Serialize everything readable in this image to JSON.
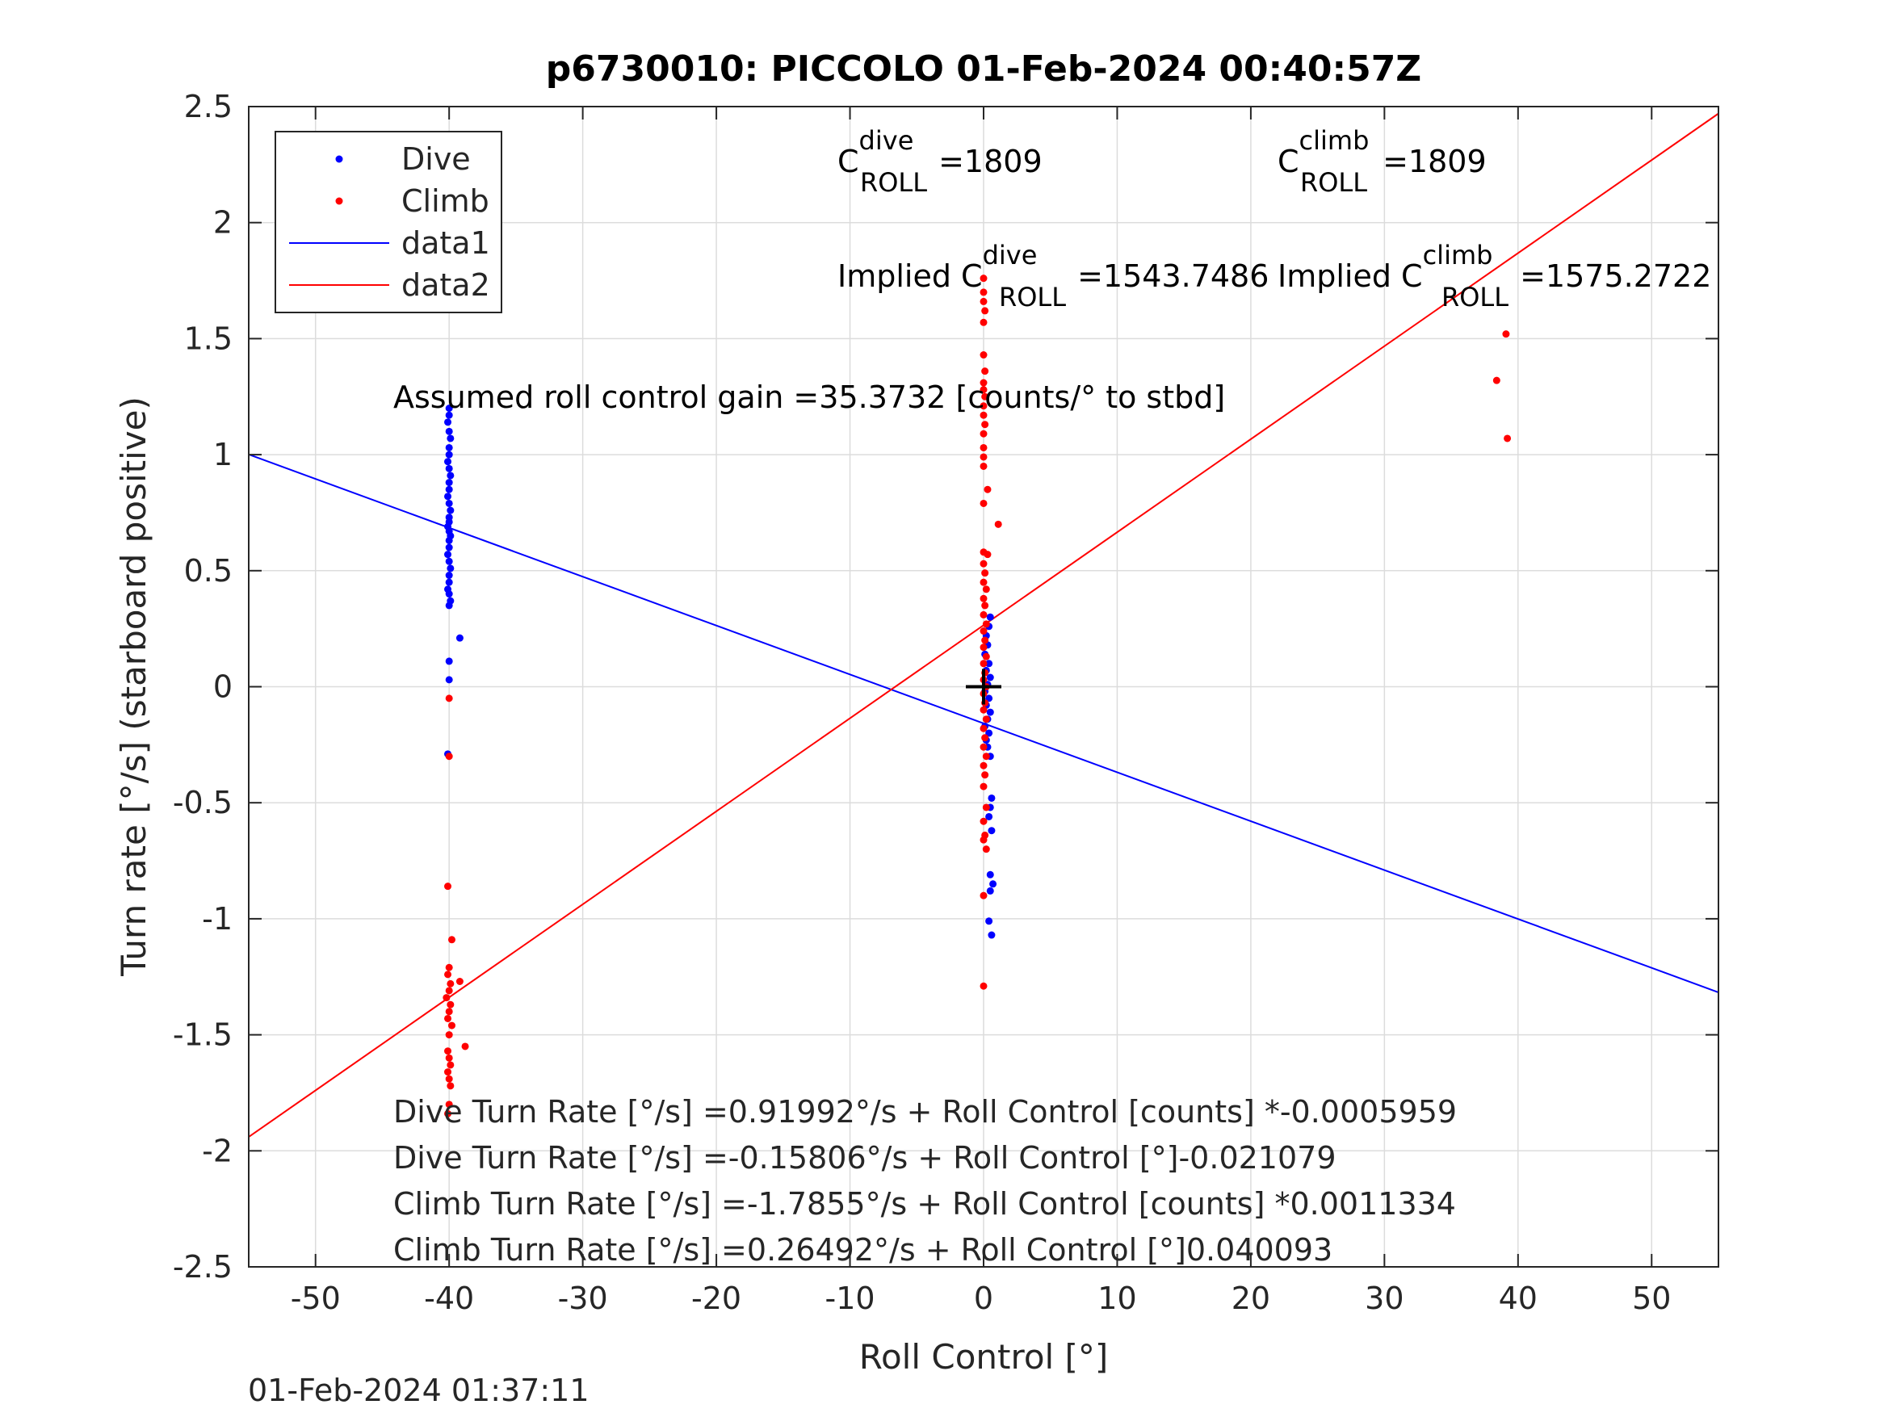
{
  "timestamp": "01-Feb-2024 01:37:11",
  "chart_data": {
    "type": "scatter",
    "title": "p6730010: PICCOLO 01-Feb-2024 00:40:57Z",
    "xlabel": "Roll Control [°]",
    "ylabel": "Turn rate [°/s] (starboard positive)",
    "xlim": [
      -55,
      55
    ],
    "ylim": [
      -2.5,
      2.5
    ],
    "xticks": [
      -50,
      -40,
      -30,
      -20,
      -10,
      0,
      10,
      20,
      30,
      40,
      50
    ],
    "yticks": [
      -2.5,
      -2,
      -1.5,
      -1,
      -0.5,
      0,
      0.5,
      1,
      1.5,
      2,
      2.5
    ],
    "xtick_labels": [
      "-50",
      "-40",
      "-30",
      "-20",
      "-10",
      "0",
      "10",
      "20",
      "30",
      "40",
      "50"
    ],
    "ytick_labels": [
      "-2.5",
      "-2",
      "-1.5",
      "-1",
      "-0.5",
      "0",
      "0.5",
      "1",
      "1.5",
      "2",
      "2.5"
    ],
    "grid": true,
    "legend": {
      "placement": "top-left",
      "entries": [
        {
          "label": "Dive",
          "color": "#0000ff",
          "kind": "marker"
        },
        {
          "label": "Climb",
          "color": "#ff0000",
          "kind": "marker"
        },
        {
          "label": "data1",
          "color": "#0000ff",
          "kind": "line"
        },
        {
          "label": "data2",
          "color": "#ff0000",
          "kind": "line"
        }
      ]
    },
    "series": [
      {
        "name": "Dive",
        "kind": "scatter",
        "color": "#0000ff",
        "points": [
          [
            -40.0,
            1.2
          ],
          [
            -40.0,
            1.17
          ],
          [
            -40.1,
            1.14
          ],
          [
            -40.0,
            1.1
          ],
          [
            -39.9,
            1.07
          ],
          [
            -40.0,
            1.03
          ],
          [
            -40.0,
            1.0
          ],
          [
            -40.1,
            0.97
          ],
          [
            -40.0,
            0.94
          ],
          [
            -39.9,
            0.91
          ],
          [
            -40.0,
            0.88
          ],
          [
            -40.0,
            0.85
          ],
          [
            -40.1,
            0.82
          ],
          [
            -40.0,
            0.79
          ],
          [
            -39.9,
            0.76
          ],
          [
            -40.0,
            0.73
          ],
          [
            -40.0,
            0.71
          ],
          [
            -40.1,
            0.69
          ],
          [
            -40.0,
            0.67
          ],
          [
            -39.9,
            0.65
          ],
          [
            -40.0,
            0.63
          ],
          [
            -40.0,
            0.6
          ],
          [
            -40.1,
            0.57
          ],
          [
            -40.0,
            0.54
          ],
          [
            -39.9,
            0.51
          ],
          [
            -40.0,
            0.48
          ],
          [
            -40.0,
            0.45
          ],
          [
            -40.1,
            0.42
          ],
          [
            -40.0,
            0.4
          ],
          [
            -39.9,
            0.37
          ],
          [
            -40.0,
            0.35
          ],
          [
            -39.2,
            0.21
          ],
          [
            -40.0,
            0.11
          ],
          [
            -40.0,
            0.03
          ],
          [
            -40.1,
            -0.29
          ],
          [
            0.5,
            0.3
          ],
          [
            0.4,
            0.26
          ],
          [
            0.2,
            0.22
          ],
          [
            0.3,
            0.18
          ],
          [
            0.1,
            0.14
          ],
          [
            0.4,
            0.1
          ],
          [
            0.2,
            0.07
          ],
          [
            0.5,
            0.04
          ],
          [
            0.3,
            0.01
          ],
          [
            0.1,
            -0.02
          ],
          [
            0.4,
            -0.05
          ],
          [
            0.2,
            -0.08
          ],
          [
            0.5,
            -0.11
          ],
          [
            0.3,
            -0.14
          ],
          [
            0.1,
            -0.17
          ],
          [
            0.4,
            -0.2
          ],
          [
            0.2,
            -0.23
          ],
          [
            0.3,
            -0.26
          ],
          [
            0.5,
            -0.3
          ],
          [
            0.6,
            -0.48
          ],
          [
            0.5,
            -0.52
          ],
          [
            0.4,
            -0.56
          ],
          [
            0.6,
            -0.62
          ],
          [
            0.5,
            -0.81
          ],
          [
            0.7,
            -0.85
          ],
          [
            0.5,
            -0.88
          ],
          [
            0.4,
            -1.01
          ],
          [
            0.6,
            -1.07
          ]
        ]
      },
      {
        "name": "Climb",
        "kind": "scatter",
        "color": "#ff0000",
        "points": [
          [
            -40.0,
            -0.05
          ],
          [
            -40.0,
            -0.3
          ],
          [
            -40.1,
            -0.86
          ],
          [
            -39.8,
            -1.09
          ],
          [
            -39.2,
            -1.27
          ],
          [
            -40.0,
            -1.21
          ],
          [
            -40.1,
            -1.24
          ],
          [
            -39.9,
            -1.28
          ],
          [
            -40.0,
            -1.31
          ],
          [
            -40.2,
            -1.34
          ],
          [
            -39.9,
            -1.37
          ],
          [
            -40.0,
            -1.4
          ],
          [
            -40.1,
            -1.43
          ],
          [
            -39.8,
            -1.46
          ],
          [
            -40.0,
            -1.5
          ],
          [
            -38.8,
            -1.55
          ],
          [
            -40.1,
            -1.57
          ],
          [
            -40.0,
            -1.6
          ],
          [
            -39.9,
            -1.63
          ],
          [
            -40.1,
            -1.66
          ],
          [
            -40.0,
            -1.69
          ],
          [
            -39.9,
            -1.72
          ],
          [
            -40.0,
            -1.8
          ],
          [
            -40.1,
            -1.84
          ],
          [
            0.0,
            1.76
          ],
          [
            0.0,
            1.7
          ],
          [
            0.0,
            1.66
          ],
          [
            0.1,
            1.62
          ],
          [
            0.0,
            1.57
          ],
          [
            0.0,
            1.43
          ],
          [
            0.1,
            1.36
          ],
          [
            0.0,
            1.31
          ],
          [
            0.0,
            1.28
          ],
          [
            0.1,
            1.25
          ],
          [
            0.0,
            1.21
          ],
          [
            0.0,
            1.17
          ],
          [
            0.1,
            1.13
          ],
          [
            0.0,
            1.09
          ],
          [
            0.0,
            1.03
          ],
          [
            0.0,
            0.99
          ],
          [
            0.0,
            0.95
          ],
          [
            0.3,
            0.85
          ],
          [
            0.0,
            0.79
          ],
          [
            1.1,
            0.7
          ],
          [
            0.0,
            0.58
          ],
          [
            0.3,
            0.57
          ],
          [
            0.0,
            0.53
          ],
          [
            0.1,
            0.49
          ],
          [
            0.0,
            0.45
          ],
          [
            0.2,
            0.42
          ],
          [
            0.0,
            0.38
          ],
          [
            0.1,
            0.35
          ],
          [
            0.0,
            0.31
          ],
          [
            0.2,
            0.27
          ],
          [
            0.0,
            0.24
          ],
          [
            0.1,
            0.2
          ],
          [
            0.0,
            0.17
          ],
          [
            0.2,
            0.13
          ],
          [
            0.0,
            0.1
          ],
          [
            0.1,
            0.06
          ],
          [
            0.0,
            0.03
          ],
          [
            0.2,
            0.0
          ],
          [
            0.0,
            -0.03
          ],
          [
            0.1,
            -0.07
          ],
          [
            0.0,
            -0.1
          ],
          [
            0.2,
            -0.14
          ],
          [
            0.0,
            -0.18
          ],
          [
            0.1,
            -0.22
          ],
          [
            0.0,
            -0.26
          ],
          [
            0.2,
            -0.3
          ],
          [
            0.0,
            -0.34
          ],
          [
            0.1,
            -0.38
          ],
          [
            0.0,
            -0.43
          ],
          [
            0.2,
            -0.52
          ],
          [
            0.0,
            -0.58
          ],
          [
            0.1,
            -0.64
          ],
          [
            0.0,
            -0.66
          ],
          [
            0.2,
            -0.7
          ],
          [
            0.0,
            -0.9
          ],
          [
            0.0,
            -1.29
          ],
          [
            38.4,
            1.32
          ],
          [
            39.1,
            1.52
          ],
          [
            39.2,
            1.07
          ]
        ]
      },
      {
        "name": "data1",
        "kind": "line",
        "color": "#0000ff",
        "x": [
          -55,
          55
        ],
        "y": [
          1.001,
          -1.317
        ]
      },
      {
        "name": "data2",
        "kind": "line",
        "color": "#ff0000",
        "x": [
          -55,
          55
        ],
        "y": [
          -1.94,
          2.47
        ]
      }
    ],
    "origin_marker": {
      "x": 0,
      "y": 0,
      "color": "#000000"
    },
    "annotations": {
      "c_dive": {
        "base": "C",
        "sup": "dive",
        "sub": "ROLL",
        "value": " =1809"
      },
      "c_climb": {
        "base": "C",
        "sup": "climb",
        "sub": "ROLL",
        "value": " =1809"
      },
      "implied_c_dive": {
        "base": "Implied C",
        "sup": "dive",
        "sub": "ROLL",
        "value": " =1543.7486"
      },
      "implied_c_climb": {
        "base": "Implied C",
        "sup": "climb",
        "sub": "ROLL",
        "value": " =1575.2722"
      },
      "gain": "Assumed roll control gain =35.3732 [counts/° to stbd]",
      "fit_lines": [
        "Dive Turn Rate [°/s] =0.91992°/s + Roll Control [counts] *-0.0005959",
        "Dive Turn Rate [°/s] =-0.15806°/s + Roll Control [°]-0.021079",
        "Climb Turn Rate [°/s] =-1.7855°/s + Roll Control [counts] *0.0011334",
        "Climb Turn Rate [°/s] =0.26492°/s + Roll Control [°]0.040093"
      ]
    }
  }
}
